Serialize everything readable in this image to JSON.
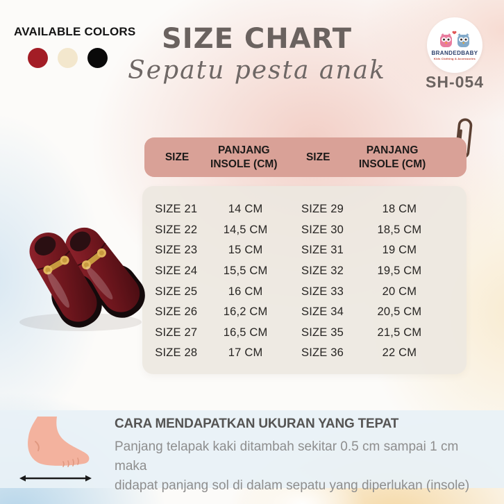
{
  "available_colors": {
    "label": "AVAILABLE COLORS",
    "swatches": [
      "#A31D26",
      "#F3E7CD",
      "#0A0A0A"
    ]
  },
  "header": {
    "title": "SIZE CHART",
    "subtitle": "Sepatu pesta anak",
    "product_code": "SH-054"
  },
  "brand": {
    "name": "BRANDEDBABY",
    "tagline": "Kids Clothing & Accessories"
  },
  "table": {
    "columns": [
      "SIZE",
      "PANJANG INSOLE (CM)",
      "SIZE",
      "PANJANG INSOLE (CM)"
    ],
    "rows": [
      [
        "SIZE 21",
        "14 CM",
        "SIZE 29",
        "18 CM"
      ],
      [
        "SIZE 22",
        "14,5 CM",
        "SIZE 30",
        "18,5 CM"
      ],
      [
        "SIZE 23",
        "15 CM",
        "SIZE 31",
        "19 CM"
      ],
      [
        "SIZE 24",
        "15,5 CM",
        "SIZE 32",
        "19,5 CM"
      ],
      [
        "SIZE 25",
        "16 CM",
        "SIZE 33",
        "20 CM"
      ],
      [
        "SIZE 26",
        "16,2 CM",
        "SIZE 34",
        "20,5 CM"
      ],
      [
        "SIZE 27",
        "16,5 CM",
        "SIZE 35",
        "21,5 CM"
      ],
      [
        "SIZE 28",
        "17 CM",
        "SIZE 36",
        "22 CM"
      ]
    ]
  },
  "sizing_info": {
    "heading": "CARA MENDAPATKAN UKURAN YANG TEPAT",
    "line1": "Panjang telapak kaki ditambah sekitar 0.5 cm sampai 1 cm maka",
    "line2": "didapat panjang sol di dalam sepatu yang diperlukan (insole)"
  },
  "colors": {
    "table_header_bg": "#D9A197",
    "table_body_bg": "#ECE8E0",
    "shoe_maroon": "#6E161D",
    "info_band_bg": "#E8F1F6"
  }
}
